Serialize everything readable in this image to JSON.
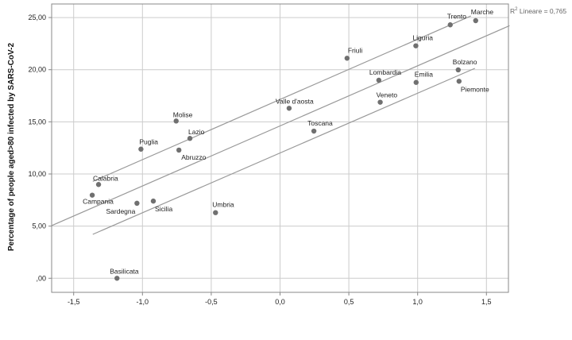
{
  "chart_data": {
    "type": "scatter",
    "title": "",
    "xlabel": "",
    "ylabel": "Percentage of  people aged>80 infected by SARS-CoV-2",
    "xlim": [
      -1.66,
      1.66
    ],
    "ylim": [
      -1.35,
      26.3
    ],
    "grid": true,
    "x_ticks": [
      -1.5,
      -1.0,
      -0.5,
      0.0,
      0.5,
      1.0,
      1.5
    ],
    "x_tick_labels": [
      "-1,5",
      "-1,0",
      "-0,5",
      "0,0",
      "0,5",
      "1,0",
      "1,5"
    ],
    "y_ticks": [
      0,
      5,
      10,
      15,
      20,
      25
    ],
    "y_tick_labels": [
      ",00",
      "5,00",
      "10,00",
      "15,00",
      "20,00",
      "25,00"
    ],
    "annotation": {
      "prefix": "R",
      "sup": "2",
      "text": " Lineare = 0,765"
    },
    "points": [
      {
        "label": "Molise",
        "x": -0.755,
        "y": 15.08
      },
      {
        "label": "Lazio",
        "x": -0.655,
        "y": 13.41
      },
      {
        "label": "Puglia",
        "x": -1.011,
        "y": 12.38
      },
      {
        "label": "Abruzzo",
        "x": -0.735,
        "y": 12.29
      },
      {
        "label": "Calabria",
        "x": -1.319,
        "y": 8.99
      },
      {
        "label": "Campania",
        "x": -1.365,
        "y": 7.97
      },
      {
        "label": "Sardegna",
        "x": -1.04,
        "y": 7.19
      },
      {
        "label": "Sicilia",
        "x": -0.921,
        "y": 7.4
      },
      {
        "label": "Umbria",
        "x": -0.469,
        "y": 6.29
      },
      {
        "label": "Basilicata",
        "x": -1.185,
        "y": 0.0
      },
      {
        "label": "Trento",
        "x": 1.237,
        "y": 24.3
      },
      {
        "label": "Marche",
        "x": 1.422,
        "y": 24.7
      },
      {
        "label": "Liguria",
        "x": 0.987,
        "y": 22.29
      },
      {
        "label": "Friuli",
        "x": 0.487,
        "y": 21.1
      },
      {
        "label": "Bolzano",
        "x": 1.295,
        "y": 19.98
      },
      {
        "label": "Lombardia",
        "x": 0.718,
        "y": 18.99
      },
      {
        "label": "Emilia",
        "x": 0.989,
        "y": 18.78
      },
      {
        "label": "Piemonte",
        "x": 1.301,
        "y": 18.89
      },
      {
        "label": "Veneto",
        "x": 0.728,
        "y": 16.88
      },
      {
        "label": "Valle d'aosta",
        "x": 0.066,
        "y": 16.3
      },
      {
        "label": "Toscana",
        "x": 0.246,
        "y": 14.11
      }
    ],
    "lines": [
      {
        "role": "fit",
        "x": [
          -1.659,
          1.668
        ],
        "y": [
          5.05,
          24.22
        ]
      },
      {
        "role": "upper-band",
        "x": [
          -1.361,
          1.387
        ],
        "y": [
          9.29,
          25.15
        ]
      },
      {
        "role": "lower-band",
        "x": [
          -1.361,
          1.416
        ],
        "y": [
          4.21,
          20.13
        ]
      }
    ],
    "colors": {
      "point": "#707070",
      "line": "#999999",
      "grid": "#cccccc",
      "axis": "#888888"
    }
  }
}
